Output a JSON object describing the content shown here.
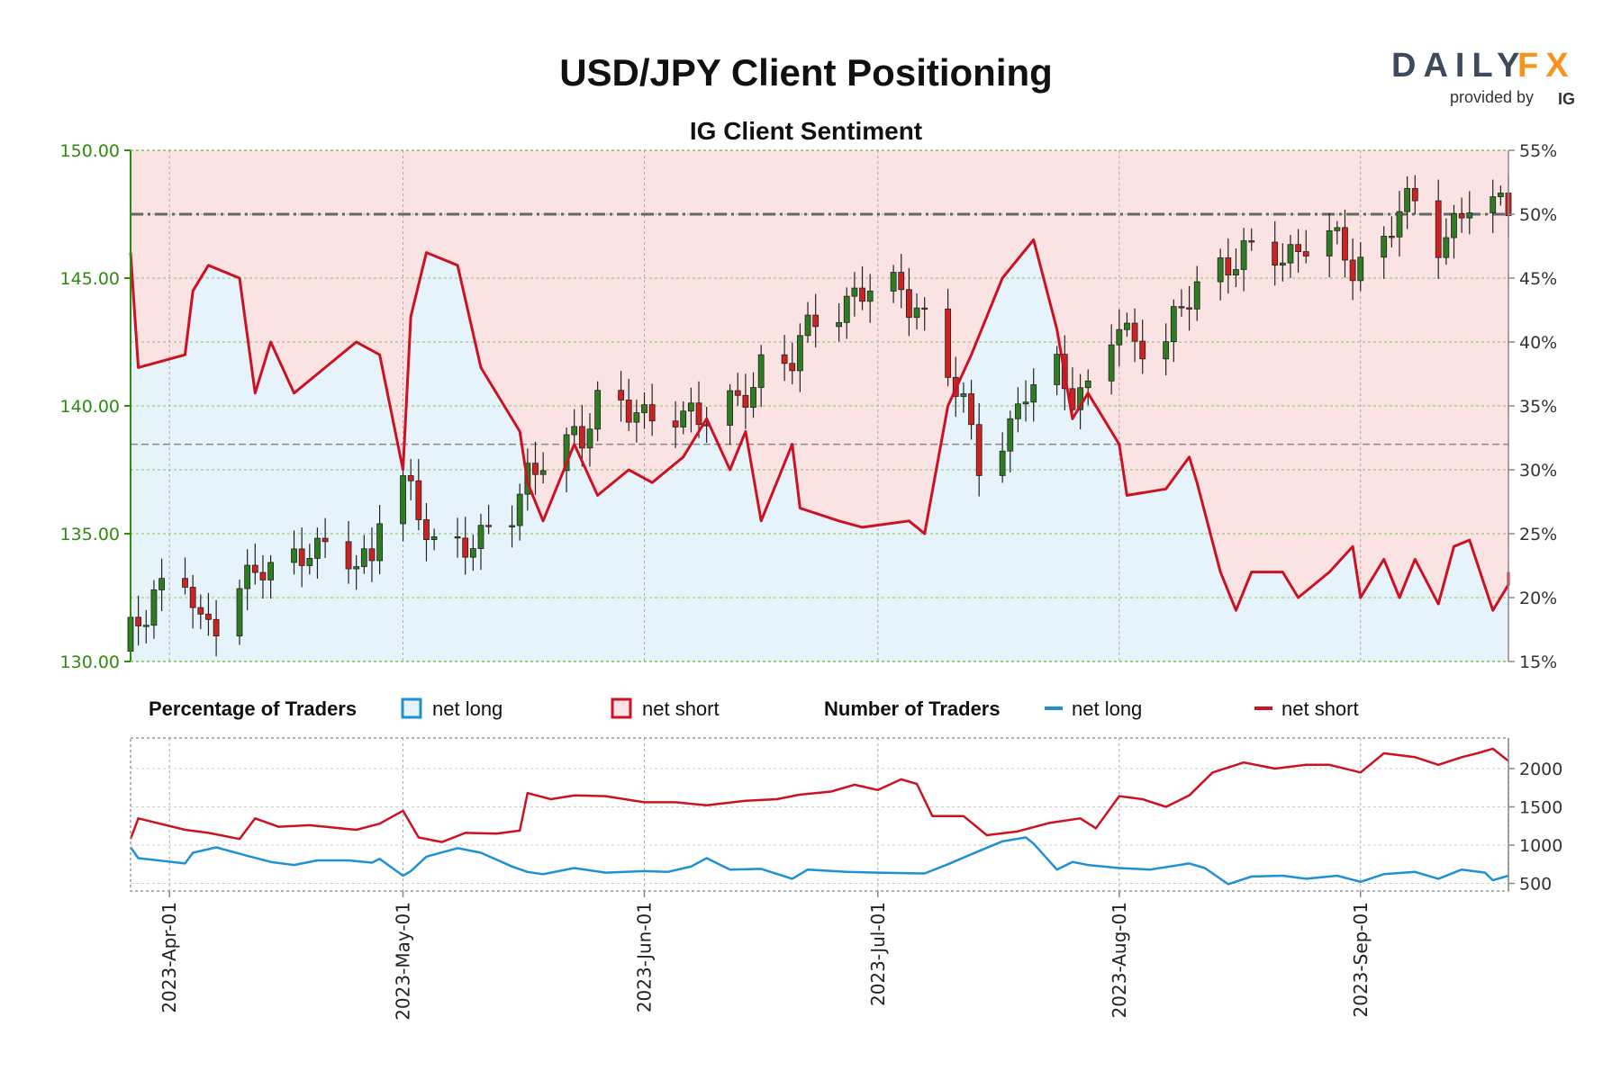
{
  "header": {
    "title": "USD/JPY Client Positioning",
    "subtitle": "IG Client Sentiment",
    "logo_daily": "DAILY",
    "logo_fx": "FX",
    "logo_provided": "provided by",
    "logo_ig": "IG"
  },
  "colors": {
    "net_long": "#1e90d6",
    "net_short": "#cc1122",
    "long_fill": "#e6f3fb",
    "short_fill": "#fbe3e3",
    "candle_up": "#2e7d22",
    "candle_down": "#cc2222",
    "left_axis": "#2f8a12",
    "accent_orange": "#f7941d"
  },
  "legend": {
    "pct_title": "Percentage of Traders",
    "pct_long": "net long",
    "pct_short": "net short",
    "num_title": "Number of Traders",
    "num_long": "net long",
    "num_short": "net short"
  },
  "chart_data": [
    {
      "type": "candlestick",
      "title": "USD/JPY Client Positioning",
      "subtitle": "IG Client Sentiment",
      "left_axis": {
        "ylim": [
          130,
          150
        ],
        "ticks": [
          "130.00",
          "135.00",
          "140.00",
          "145.00",
          "150.00"
        ]
      },
      "right_axis": {
        "ylim": [
          15,
          55
        ],
        "ticks": [
          "15%",
          "20%",
          "25%",
          "30%",
          "35%",
          "40%",
          "45%",
          "50%",
          "55%"
        ]
      },
      "x_range": [
        "2023-03-27",
        "2023-09-20"
      ],
      "x_ticks": [
        "2023-Apr-01",
        "2023-May-01",
        "2023-Jun-01",
        "2023-Jul-01",
        "2023-Aug-01",
        "2023-Sep-01"
      ],
      "grid": true,
      "reference_lines": [
        {
          "axis": "right",
          "value": 50
        },
        {
          "axis": "right",
          "value": 32
        }
      ],
      "price_anchors": [
        [
          "2023-03-27",
          131.0
        ],
        [
          "2023-03-30",
          132.8
        ],
        [
          "2023-04-03",
          133.1
        ],
        [
          "2023-04-05",
          131.2
        ],
        [
          "2023-04-07",
          131.8
        ],
        [
          "2023-04-10",
          133.2
        ],
        [
          "2023-04-14",
          133.5
        ],
        [
          "2023-04-17",
          134.0
        ],
        [
          "2023-04-19",
          134.7
        ],
        [
          "2023-04-21",
          134.2
        ],
        [
          "2023-04-25",
          133.7
        ],
        [
          "2023-04-27",
          134.2
        ],
        [
          "2023-04-28",
          136.2
        ],
        [
          "2023-05-01",
          137.2
        ],
        [
          "2023-05-03",
          135.5
        ],
        [
          "2023-05-05",
          134.6
        ],
        [
          "2023-05-09",
          134.8
        ],
        [
          "2023-05-11",
          134.6
        ],
        [
          "2023-05-15",
          135.7
        ],
        [
          "2023-05-17",
          137.5
        ],
        [
          "2023-05-19",
          138.0
        ],
        [
          "2023-05-24",
          138.6
        ],
        [
          "2023-05-26",
          140.4
        ],
        [
          "2023-05-29",
          140.3
        ],
        [
          "2023-06-01",
          139.2
        ],
        [
          "2023-06-05",
          139.8
        ],
        [
          "2023-06-07",
          139.9
        ],
        [
          "2023-06-09",
          139.4
        ],
        [
          "2023-06-13",
          140.0
        ],
        [
          "2023-06-16",
          141.7
        ],
        [
          "2023-06-20",
          141.7
        ],
        [
          "2023-06-23",
          143.5
        ],
        [
          "2023-06-28",
          144.3
        ],
        [
          "2023-06-30",
          144.4
        ],
        [
          "2023-07-04",
          144.6
        ],
        [
          "2023-07-06",
          144.0
        ],
        [
          "2023-07-10",
          141.1
        ],
        [
          "2023-07-12",
          140.0
        ],
        [
          "2023-07-14",
          138.0
        ],
        [
          "2023-07-18",
          139.0
        ],
        [
          "2023-07-20",
          140.4
        ],
        [
          "2023-07-24",
          141.6
        ],
        [
          "2023-07-26",
          140.6
        ],
        [
          "2023-07-28",
          140.3
        ],
        [
          "2023-08-01",
          143.2
        ],
        [
          "2023-08-03",
          142.6
        ],
        [
          "2023-08-07",
          142.6
        ],
        [
          "2023-08-09",
          143.6
        ],
        [
          "2023-08-11",
          144.8
        ],
        [
          "2023-08-14",
          145.6
        ],
        [
          "2023-08-17",
          145.8
        ],
        [
          "2023-08-22",
          145.9
        ],
        [
          "2023-08-25",
          146.4
        ],
        [
          "2023-08-28",
          146.5
        ],
        [
          "2023-08-31",
          145.5
        ],
        [
          "2023-09-04",
          146.5
        ],
        [
          "2023-09-06",
          147.6
        ],
        [
          "2023-09-08",
          147.8
        ],
        [
          "2023-09-11",
          146.5
        ],
        [
          "2023-09-13",
          147.2
        ],
        [
          "2023-09-15",
          147.8
        ],
        [
          "2023-09-18",
          147.6
        ],
        [
          "2023-09-20",
          148.0
        ]
      ],
      "net_long_pct_anchors": [
        [
          "2023-03-27",
          47
        ],
        [
          "2023-03-28",
          38
        ],
        [
          "2023-04-03",
          39
        ],
        [
          "2023-04-04",
          44
        ],
        [
          "2023-04-06",
          46
        ],
        [
          "2023-04-10",
          45
        ],
        [
          "2023-04-12",
          36
        ],
        [
          "2023-04-14",
          40
        ],
        [
          "2023-04-17",
          36
        ],
        [
          "2023-04-21",
          38
        ],
        [
          "2023-04-25",
          40
        ],
        [
          "2023-04-28",
          39
        ],
        [
          "2023-05-01",
          30
        ],
        [
          "2023-05-02",
          42
        ],
        [
          "2023-05-04",
          47
        ],
        [
          "2023-05-08",
          46
        ],
        [
          "2023-05-11",
          38
        ],
        [
          "2023-05-16",
          33
        ],
        [
          "2023-05-17",
          29
        ],
        [
          "2023-05-19",
          26
        ],
        [
          "2023-05-23",
          32
        ],
        [
          "2023-05-26",
          28
        ],
        [
          "2023-05-30",
          30
        ],
        [
          "2023-06-02",
          29
        ],
        [
          "2023-06-06",
          31
        ],
        [
          "2023-06-09",
          34
        ],
        [
          "2023-06-12",
          30
        ],
        [
          "2023-06-14",
          33
        ],
        [
          "2023-06-16",
          26
        ],
        [
          "2023-06-20",
          32
        ],
        [
          "2023-06-21",
          27
        ],
        [
          "2023-06-26",
          26
        ],
        [
          "2023-06-29",
          25.5
        ],
        [
          "2023-07-05",
          26
        ],
        [
          "2023-07-07",
          25
        ],
        [
          "2023-07-10",
          35
        ],
        [
          "2023-07-13",
          39
        ],
        [
          "2023-07-17",
          45
        ],
        [
          "2023-07-21",
          48
        ],
        [
          "2023-07-24",
          41
        ],
        [
          "2023-07-26",
          34
        ],
        [
          "2023-07-28",
          36
        ],
        [
          "2023-08-01",
          32
        ],
        [
          "2023-08-02",
          28
        ],
        [
          "2023-08-07",
          28.5
        ],
        [
          "2023-08-10",
          31
        ],
        [
          "2023-08-11",
          29
        ],
        [
          "2023-08-14",
          22
        ],
        [
          "2023-08-16",
          19
        ],
        [
          "2023-08-18",
          22
        ],
        [
          "2023-08-22",
          22
        ],
        [
          "2023-08-24",
          20
        ],
        [
          "2023-08-28",
          22
        ],
        [
          "2023-08-31",
          24
        ],
        [
          "2023-09-01",
          20
        ],
        [
          "2023-09-04",
          23
        ],
        [
          "2023-09-06",
          20
        ],
        [
          "2023-09-08",
          23
        ],
        [
          "2023-09-11",
          19.5
        ],
        [
          "2023-09-13",
          24
        ],
        [
          "2023-09-15",
          24.5
        ],
        [
          "2023-09-18",
          19
        ],
        [
          "2023-09-20",
          21
        ],
        [
          "2023-09-20",
          22
        ]
      ]
    },
    {
      "type": "line",
      "title": "Number of Traders",
      "ylim": [
        400,
        2400
      ],
      "yticks": [
        "500",
        "1000",
        "1500",
        "2000"
      ],
      "series": [
        {
          "name": "net long",
          "points": [
            [
              "2023-03-27",
              970
            ],
            [
              "2023-03-28",
              830
            ],
            [
              "2023-04-03",
              760
            ],
            [
              "2023-04-04",
              900
            ],
            [
              "2023-04-07",
              970
            ],
            [
              "2023-04-11",
              860
            ],
            [
              "2023-04-14",
              780
            ],
            [
              "2023-04-17",
              740
            ],
            [
              "2023-04-20",
              800
            ],
            [
              "2023-04-24",
              800
            ],
            [
              "2023-04-27",
              770
            ],
            [
              "2023-04-28",
              820
            ],
            [
              "2023-05-01",
              600
            ],
            [
              "2023-05-02",
              660
            ],
            [
              "2023-05-04",
              850
            ],
            [
              "2023-05-08",
              960
            ],
            [
              "2023-05-11",
              900
            ],
            [
              "2023-05-15",
              720
            ],
            [
              "2023-05-17",
              650
            ],
            [
              "2023-05-19",
              620
            ],
            [
              "2023-05-23",
              700
            ],
            [
              "2023-05-27",
              640
            ],
            [
              "2023-06-01",
              660
            ],
            [
              "2023-06-04",
              650
            ],
            [
              "2023-06-07",
              720
            ],
            [
              "2023-06-09",
              830
            ],
            [
              "2023-06-12",
              680
            ],
            [
              "2023-06-16",
              690
            ],
            [
              "2023-06-20",
              560
            ],
            [
              "2023-06-22",
              680
            ],
            [
              "2023-06-27",
              650
            ],
            [
              "2023-07-01",
              640
            ],
            [
              "2023-07-07",
              630
            ],
            [
              "2023-07-10",
              750
            ],
            [
              "2023-07-13",
              880
            ],
            [
              "2023-07-17",
              1050
            ],
            [
              "2023-07-20",
              1100
            ],
            [
              "2023-07-21",
              1020
            ],
            [
              "2023-07-24",
              680
            ],
            [
              "2023-07-26",
              780
            ],
            [
              "2023-07-28",
              740
            ],
            [
              "2023-08-01",
              700
            ],
            [
              "2023-08-05",
              680
            ],
            [
              "2023-08-10",
              760
            ],
            [
              "2023-08-12",
              700
            ],
            [
              "2023-08-15",
              490
            ],
            [
              "2023-08-18",
              590
            ],
            [
              "2023-08-22",
              600
            ],
            [
              "2023-08-25",
              560
            ],
            [
              "2023-08-29",
              600
            ],
            [
              "2023-09-01",
              520
            ],
            [
              "2023-09-04",
              620
            ],
            [
              "2023-09-08",
              650
            ],
            [
              "2023-09-11",
              560
            ],
            [
              "2023-09-14",
              680
            ],
            [
              "2023-09-17",
              640
            ],
            [
              "2023-09-18",
              540
            ],
            [
              "2023-09-20",
              600
            ]
          ]
        },
        {
          "name": "net short",
          "points": [
            [
              "2023-03-27",
              1080
            ],
            [
              "2023-03-28",
              1350
            ],
            [
              "2023-04-03",
              1200
            ],
            [
              "2023-04-06",
              1160
            ],
            [
              "2023-04-10",
              1080
            ],
            [
              "2023-04-12",
              1350
            ],
            [
              "2023-04-15",
              1240
            ],
            [
              "2023-04-19",
              1260
            ],
            [
              "2023-04-22",
              1230
            ],
            [
              "2023-04-25",
              1200
            ],
            [
              "2023-04-28",
              1280
            ],
            [
              "2023-05-01",
              1450
            ],
            [
              "2023-05-03",
              1100
            ],
            [
              "2023-05-06",
              1040
            ],
            [
              "2023-05-09",
              1160
            ],
            [
              "2023-05-13",
              1150
            ],
            [
              "2023-05-16",
              1190
            ],
            [
              "2023-05-17",
              1680
            ],
            [
              "2023-05-20",
              1600
            ],
            [
              "2023-05-23",
              1650
            ],
            [
              "2023-05-27",
              1640
            ],
            [
              "2023-06-01",
              1560
            ],
            [
              "2023-06-05",
              1560
            ],
            [
              "2023-06-09",
              1520
            ],
            [
              "2023-06-14",
              1580
            ],
            [
              "2023-06-18",
              1600
            ],
            [
              "2023-06-21",
              1660
            ],
            [
              "2023-06-25",
              1700
            ],
            [
              "2023-06-28",
              1790
            ],
            [
              "2023-07-01",
              1720
            ],
            [
              "2023-07-04",
              1860
            ],
            [
              "2023-07-06",
              1800
            ],
            [
              "2023-07-08",
              1380
            ],
            [
              "2023-07-12",
              1380
            ],
            [
              "2023-07-15",
              1130
            ],
            [
              "2023-07-19",
              1180
            ],
            [
              "2023-07-23",
              1290
            ],
            [
              "2023-07-27",
              1350
            ],
            [
              "2023-07-29",
              1220
            ],
            [
              "2023-08-01",
              1640
            ],
            [
              "2023-08-04",
              1600
            ],
            [
              "2023-08-07",
              1500
            ],
            [
              "2023-08-10",
              1650
            ],
            [
              "2023-08-13",
              1950
            ],
            [
              "2023-08-17",
              2080
            ],
            [
              "2023-08-21",
              2000
            ],
            [
              "2023-08-25",
              2050
            ],
            [
              "2023-08-28",
              2050
            ],
            [
              "2023-09-01",
              1950
            ],
            [
              "2023-09-04",
              2200
            ],
            [
              "2023-09-08",
              2150
            ],
            [
              "2023-09-11",
              2050
            ],
            [
              "2023-09-14",
              2150
            ],
            [
              "2023-09-16",
              2200
            ],
            [
              "2023-09-18",
              2260
            ],
            [
              "2023-09-20",
              2100
            ]
          ]
        }
      ]
    }
  ]
}
